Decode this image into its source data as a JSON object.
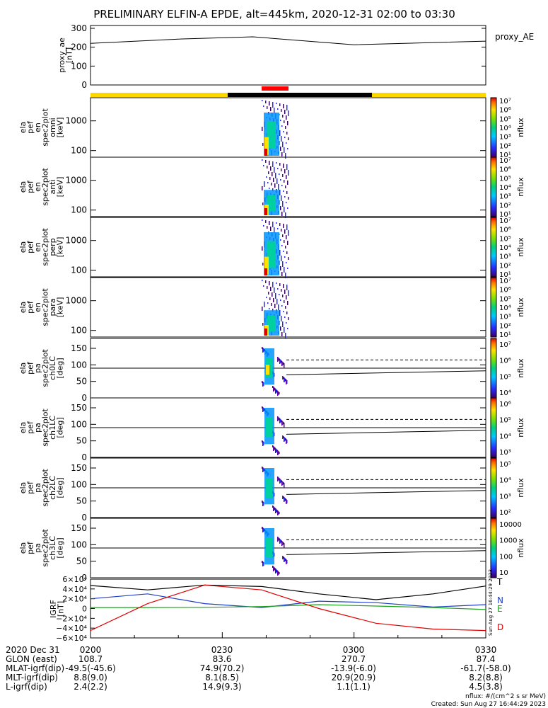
{
  "title": "PRELIMINARY ELFIN-A EPDE, alt=445km, 2020-12-31 02:00 to 03:30",
  "colors": {
    "fast": "#ffd700",
    "slow": "#000000",
    "science": "#ff0000",
    "ae": "#000000",
    "N": "#1f3fc8",
    "E": "#1aa31a",
    "D": "#e00000",
    "T": "#000000"
  },
  "ae_panel": {
    "ylabel": [
      "proxy_ae",
      "[nT]"
    ],
    "yticks": [
      "0",
      "100",
      "200",
      "300"
    ],
    "legend": "proxy_AE"
  },
  "spec_panels": [
    {
      "ylabel": [
        "ela",
        "pef",
        "en",
        "spec2plot",
        "omni",
        "[keV]"
      ],
      "yticks": [
        "100",
        "1000"
      ],
      "cb_ticks": [
        "10⁷",
        "10⁶",
        "10⁵",
        "10⁴",
        "10³",
        "10²",
        "10¹"
      ],
      "cb_label": "nflux"
    },
    {
      "ylabel": [
        "ela",
        "pef",
        "en",
        "spec2plot",
        "anti",
        "[keV]"
      ],
      "yticks": [
        "100",
        "1000"
      ],
      "cb_ticks": [
        "10⁷",
        "10⁶",
        "10⁵",
        "10⁴",
        "10³",
        "10²",
        "10¹"
      ],
      "cb_label": "nflux"
    },
    {
      "ylabel": [
        "ela",
        "pef",
        "en",
        "spec2plot",
        "perp",
        "[keV]"
      ],
      "yticks": [
        "100",
        "1000"
      ],
      "cb_ticks": [
        "10⁷",
        "10⁶",
        "10⁵",
        "10⁴",
        "10³",
        "10²",
        "10¹"
      ],
      "cb_label": "nflux"
    },
    {
      "ylabel": [
        "ela",
        "pef",
        "en",
        "spec2plot",
        "para",
        "[keV]"
      ],
      "yticks": [
        "100",
        "1000"
      ],
      "cb_ticks": [
        "10⁷",
        "10⁶",
        "10⁵",
        "10⁴",
        "10³",
        "10²",
        "10¹"
      ],
      "cb_label": "nflux"
    }
  ],
  "pa_panels": [
    {
      "ylabel": [
        "ela",
        "pef",
        "pa",
        "spec2plot",
        "ch0LC",
        "[deg]"
      ],
      "yticks": [
        "0",
        "50",
        "100",
        "150"
      ],
      "cb_ticks": [
        "10⁷",
        "10⁶",
        "10⁵",
        "10⁴"
      ],
      "cb_label": "nflux"
    },
    {
      "ylabel": [
        "ela",
        "pef",
        "pa",
        "spec2plot",
        "ch1LC",
        "[deg]"
      ],
      "yticks": [
        "0",
        "50",
        "100",
        "150"
      ],
      "cb_ticks": [
        "10⁶",
        "10⁵",
        "10⁴",
        "10³"
      ],
      "cb_label": "nflux"
    },
    {
      "ylabel": [
        "ela",
        "pef",
        "pa",
        "spec2plot",
        "ch2LC",
        "[deg]"
      ],
      "yticks": [
        "0",
        "50",
        "100",
        "150"
      ],
      "cb_ticks": [
        "10⁵",
        "10⁴",
        "10³",
        "10²"
      ],
      "cb_label": "nflux"
    },
    {
      "ylabel": [
        "ela",
        "pef",
        "pa",
        "spec2plot",
        "ch3LC",
        "[deg]"
      ],
      "yticks": [
        "0",
        "50",
        "100",
        "150"
      ],
      "cb_ticks": [
        "10000",
        "1000",
        "100",
        "10"
      ],
      "cb_label": "nflux"
    }
  ],
  "igrf_panel": {
    "ylabel": [
      "IGRF",
      "[nT]"
    ],
    "yticks": [
      "6×10⁴",
      "4×10⁴",
      "2×10⁴",
      "0",
      "−2×10⁴",
      "−4×10⁴",
      "−6×10⁴"
    ],
    "legend": [
      "T",
      "N",
      "E",
      "D"
    ],
    "stamp": "Sun Aug 27 16:44:29 2023"
  },
  "chart_data": {
    "type": "line",
    "x": [
      "0200",
      "0230",
      "0300",
      "0330"
    ],
    "proxy_ae_nT": [
      220,
      243,
      255,
      213,
      232
    ],
    "proxy_ae_times": [
      "0200",
      "0220",
      "0237",
      "0300",
      "0330"
    ],
    "ae_ylim": [
      0,
      300
    ],
    "energy_ylim_keV": [
      60,
      6000
    ],
    "pa_ylim_deg": [
      0,
      180
    ],
    "igrf_ylim_nT": [
      -60000,
      60000
    ],
    "igrf_series": [
      {
        "name": "T",
        "values": [
          47000,
          38000,
          48000,
          45000,
          30000,
          18000,
          30000,
          46000
        ]
      },
      {
        "name": "N",
        "values": [
          20000,
          30000,
          10000,
          2000,
          15000,
          12000,
          3000,
          8000
        ]
      },
      {
        "name": "E",
        "values": [
          2000,
          2000,
          2500,
          4000,
          8000,
          5000,
          2000,
          -2000
        ]
      },
      {
        "name": "D",
        "values": [
          -45000,
          10000,
          48000,
          38000,
          0,
          -30000,
          -42000,
          -45000
        ]
      }
    ],
    "igrf_times": [
      "0200",
      "0213",
      "0226",
      "0239",
      "0252",
      "0305",
      "0318",
      "0330"
    ]
  },
  "footer": {
    "rows": [
      [
        "2020 Dec 31",
        "0200",
        "0230",
        "0300",
        "0330"
      ],
      [
        "GLON (east)",
        "108.7",
        "83.6",
        "270.7",
        "87.4"
      ],
      [
        "MLAT-igrf(dip)",
        "-49.5(-45.6)",
        "74.9(70.2)",
        "-13.9(-6.0)",
        "-61.7(-58.0)"
      ],
      [
        "MLT-igrf(dip)",
        "8.8(9.0)",
        "8.1(8.5)",
        "20.9(20.9)",
        "8.2(8.8)"
      ],
      [
        "L-igrf(dip)",
        "2.4(2.2)",
        "14.9(9.3)",
        "1.1(1.1)",
        "4.5(3.8)"
      ]
    ],
    "units_note": "nflux: #/(cm^2 s sr MeV)",
    "created": "Created: Sun Aug 27 16:44:29 2023"
  }
}
